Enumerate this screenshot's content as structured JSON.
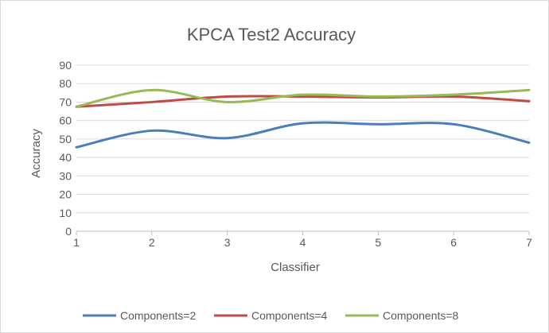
{
  "chart_data": {
    "type": "line",
    "title": "KPCA Test2 Accuracy",
    "xlabel": "Classifier",
    "ylabel": "Accuracy",
    "x": [
      1,
      2,
      3,
      4,
      5,
      6,
      7
    ],
    "xlim": [
      1,
      7
    ],
    "ylim": [
      0,
      90
    ],
    "yticks": [
      0,
      10,
      20,
      30,
      40,
      50,
      60,
      70,
      80,
      90
    ],
    "xticks": [
      1,
      2,
      3,
      4,
      5,
      6,
      7
    ],
    "grid": "horizontal",
    "legend": "bottom",
    "smoothed": true,
    "series": [
      {
        "name": "Components=2",
        "color": "#4a7ebb",
        "values": [
          45.5,
          54.5,
          50.5,
          58.5,
          58.0,
          58.0,
          48.0
        ]
      },
      {
        "name": "Components=4",
        "color": "#be4b48",
        "values": [
          67.5,
          70.0,
          73.0,
          73.0,
          72.5,
          73.0,
          70.5
        ]
      },
      {
        "name": "Components=8",
        "color": "#98b954",
        "values": [
          67.5,
          76.5,
          70.0,
          74.0,
          73.0,
          74.0,
          76.5
        ]
      }
    ]
  }
}
